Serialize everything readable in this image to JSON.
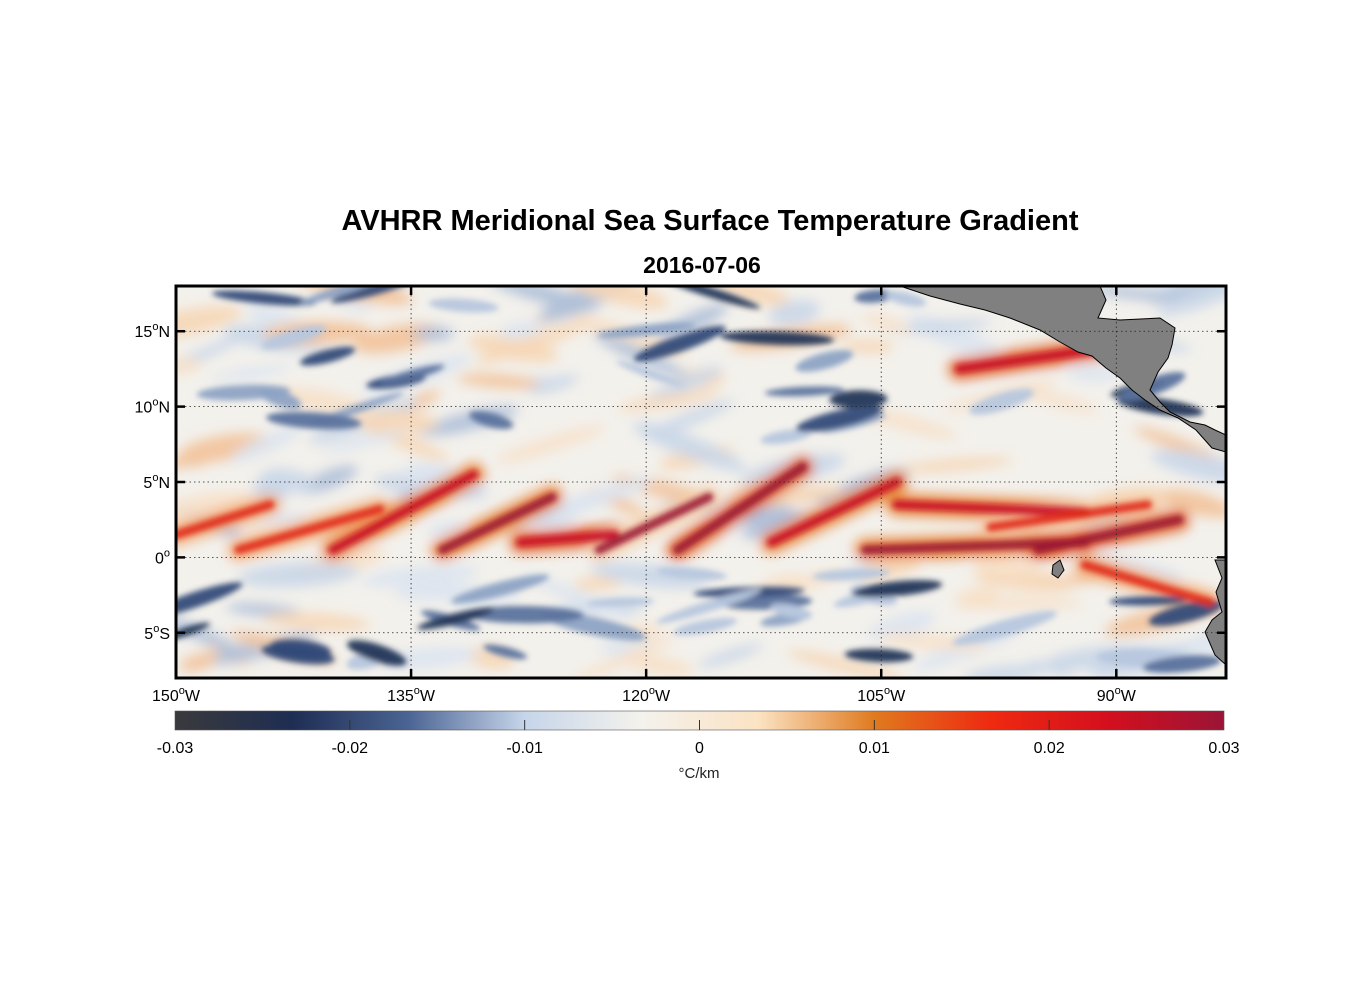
{
  "title": "AVHRR Meridional Sea Surface Temperature Gradient",
  "subtitle": "2016-07-06",
  "map": {
    "projection": "equirectangular",
    "lon_range": [
      -150,
      -83
    ],
    "lat_range": [
      -8,
      18
    ],
    "lon_ticks": [
      {
        "value": -150,
        "deg": "150",
        "hemi": "W"
      },
      {
        "value": -135,
        "deg": "135",
        "hemi": "W"
      },
      {
        "value": -120,
        "deg": "120",
        "hemi": "W"
      },
      {
        "value": -105,
        "deg": "105",
        "hemi": "W"
      },
      {
        "value": -90,
        "deg": "90",
        "hemi": "W"
      }
    ],
    "lat_ticks": [
      {
        "value": 15,
        "deg": "15",
        "hemi": "N"
      },
      {
        "value": 10,
        "deg": "10",
        "hemi": "N"
      },
      {
        "value": 5,
        "deg": "5",
        "hemi": "N"
      },
      {
        "value": 0,
        "deg": "0",
        "hemi": ""
      },
      {
        "value": -5,
        "deg": "5",
        "hemi": "S"
      }
    ],
    "grid": "dotted",
    "land_color": "#808080"
  },
  "colorbar": {
    "min": -0.03,
    "max": 0.03,
    "ticks": [
      "-0.03",
      "-0.02",
      "-0.01",
      "0",
      "0.01",
      "0.02",
      "0.03"
    ],
    "units": "°C/km",
    "colors": [
      "#3a3a3c",
      "#1e2d52",
      "#4b6493",
      "#c6d5ea",
      "#f4f2ec",
      "#fbe3c4",
      "#e07a1f",
      "#ee2a10",
      "#d40f1e",
      "#9b1436"
    ]
  }
}
